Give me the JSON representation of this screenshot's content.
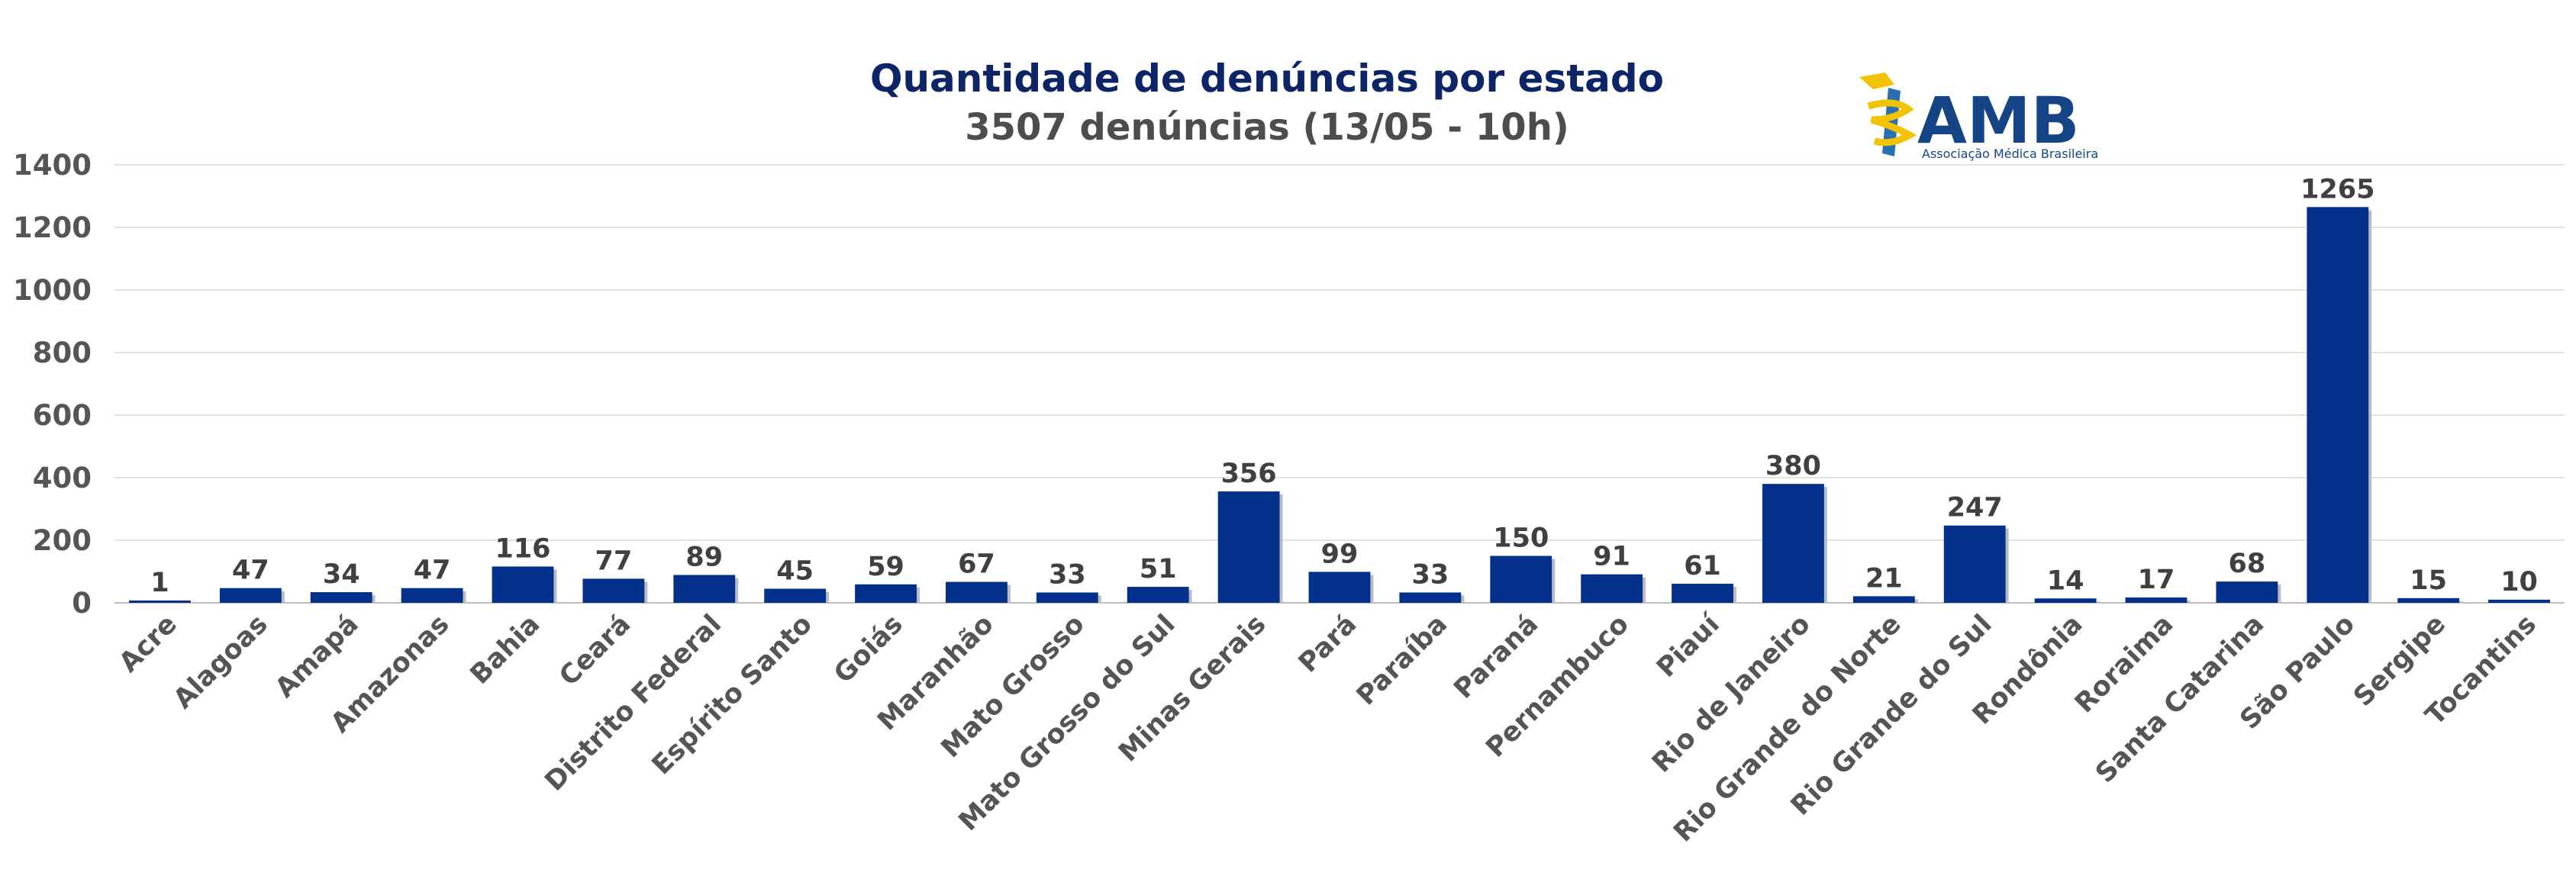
{
  "logo": {
    "name": "AMB",
    "subtitle": "Associação Médica Brasileira"
  },
  "chart_data": {
    "type": "bar",
    "title": "Quantidade de denúncias por estado",
    "subtitle": "3507 denúncias (13/05 - 10h)",
    "xlabel": "",
    "ylabel": "",
    "ylim": [
      0,
      1400
    ],
    "yticks": [
      0,
      200,
      400,
      600,
      800,
      1000,
      1200,
      1400
    ],
    "grid": true,
    "legend": "none",
    "bar_color": "#03308b",
    "categories": [
      "Acre",
      "Alagoas",
      "Amapá",
      "Amazonas",
      "Bahia",
      "Ceará",
      "Distrito Federal",
      "Espírito Santo",
      "Goiás",
      "Maranhão",
      "Mato Grosso",
      "Mato Grosso do Sul",
      "Minas Gerais",
      "Pará",
      "Paraíba",
      "Paraná",
      "Pernambuco",
      "Piauí",
      "Rio de Janeiro",
      "Rio Grande do Norte",
      "Rio Grande do Sul",
      "Rondônia",
      "Roraima",
      "Santa Catarina",
      "São Paulo",
      "Sergipe",
      "Tocantins"
    ],
    "values": [
      1,
      47,
      34,
      47,
      116,
      77,
      89,
      45,
      59,
      67,
      33,
      51,
      356,
      99,
      33,
      150,
      91,
      61,
      380,
      21,
      247,
      14,
      17,
      68,
      1265,
      15,
      10
    ]
  }
}
